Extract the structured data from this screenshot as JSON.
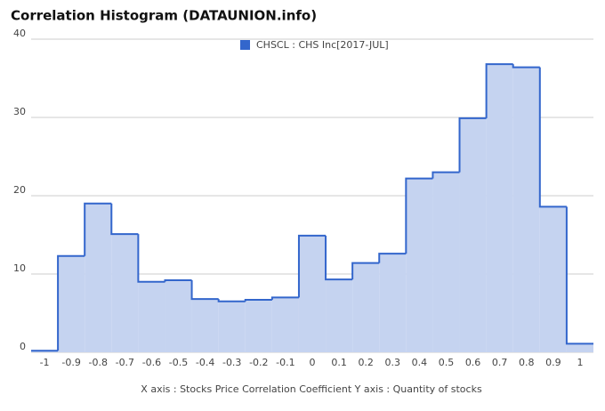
{
  "chart_data": {
    "type": "histogram",
    "title": "Correlation Histogram (DATAUNION.info)",
    "axis_label": "X axis : Stocks Price Correlation Coefficient  Y axis : Quantity of stocks",
    "series": [
      {
        "name": "CHSCL : CHS Inc[2017-JUL]",
        "color": "#3366cc",
        "fill": "#c5d3f0",
        "values": [
          0.2,
          12.3,
          19.0,
          15.1,
          9.0,
          9.2,
          6.8,
          6.5,
          6.7,
          7.0,
          14.9,
          9.3,
          11.4,
          12.6,
          22.2,
          23.0,
          29.9,
          36.8,
          36.4,
          18.6,
          1.1
        ]
      }
    ],
    "bins": [
      -1.05,
      -0.95,
      -0.85,
      -0.75,
      -0.65,
      -0.55,
      -0.45,
      -0.35,
      -0.25,
      -0.15,
      -0.05,
      0.05,
      0.15,
      0.25,
      0.35,
      0.45,
      0.55,
      0.65,
      0.75,
      0.85,
      0.95,
      1.05
    ],
    "xlim": [
      -1.05,
      1.05
    ],
    "xticks": [
      -1,
      -0.9,
      -0.8,
      -0.7,
      -0.6,
      -0.5,
      -0.4,
      -0.3,
      -0.2,
      -0.1,
      0,
      0.1,
      0.2,
      0.3,
      0.4,
      0.5,
      0.6,
      0.7,
      0.8,
      0.9,
      1
    ],
    "ylim": [
      0,
      40
    ],
    "yticks": [
      0,
      10,
      20,
      30,
      40
    ],
    "grid": true
  }
}
